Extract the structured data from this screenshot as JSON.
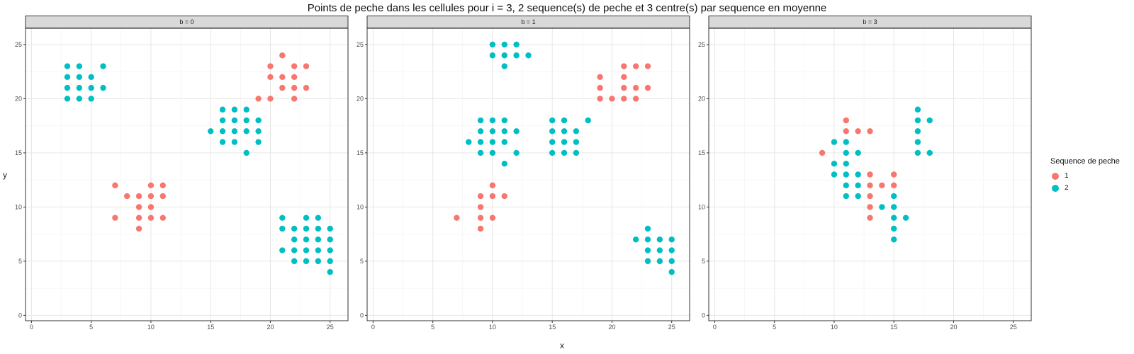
{
  "chart_data": {
    "type": "scatter",
    "title": "Points de peche dans les cellules pour i = 3, 2 sequence(s) de peche et 3 centre(s) par sequence en moyenne",
    "xlabel": "x",
    "ylabel": "y",
    "xlim": [
      -0.5,
      26.5
    ],
    "ylim": [
      -0.5,
      26.5
    ],
    "x_ticks": [
      0,
      5,
      10,
      15,
      20,
      25
    ],
    "y_ticks": [
      0,
      5,
      10,
      15,
      20,
      25
    ],
    "grid": true,
    "legend": {
      "title": "Sequence de peche",
      "position": "right",
      "entries": [
        {
          "label": "1",
          "color": "#F8766D"
        },
        {
          "label": "2",
          "color": "#00BFC4"
        }
      ]
    },
    "panels": [
      {
        "strip": "b = 0",
        "series": [
          {
            "name": "1",
            "color": "#F8766D",
            "points": [
              [
                7,
                12
              ],
              [
                7,
                9
              ],
              [
                8,
                11
              ],
              [
                9,
                11
              ],
              [
                9,
                10
              ],
              [
                9,
                9
              ],
              [
                9,
                8
              ],
              [
                10,
                12
              ],
              [
                10,
                11
              ],
              [
                10,
                10
              ],
              [
                10,
                9
              ],
              [
                11,
                12
              ],
              [
                11,
                11
              ],
              [
                11,
                9
              ],
              [
                19,
                20
              ],
              [
                20,
                23
              ],
              [
                20,
                22
              ],
              [
                20,
                20
              ],
              [
                21,
                24
              ],
              [
                21,
                22
              ],
              [
                21,
                21
              ],
              [
                22,
                23
              ],
              [
                22,
                22
              ],
              [
                22,
                21
              ],
              [
                22,
                20
              ],
              [
                23,
                23
              ],
              [
                23,
                21
              ]
            ]
          },
          {
            "name": "2",
            "color": "#00BFC4",
            "points": [
              [
                3,
                23
              ],
              [
                3,
                22
              ],
              [
                3,
                21
              ],
              [
                3,
                20
              ],
              [
                4,
                23
              ],
              [
                4,
                22
              ],
              [
                4,
                21
              ],
              [
                4,
                20
              ],
              [
                5,
                22
              ],
              [
                5,
                21
              ],
              [
                5,
                20
              ],
              [
                6,
                23
              ],
              [
                6,
                21
              ],
              [
                15,
                17
              ],
              [
                16,
                19
              ],
              [
                16,
                18
              ],
              [
                16,
                17
              ],
              [
                16,
                16
              ],
              [
                17,
                19
              ],
              [
                17,
                18
              ],
              [
                17,
                17
              ],
              [
                17,
                16
              ],
              [
                18,
                19
              ],
              [
                18,
                18
              ],
              [
                18,
                17
              ],
              [
                18,
                15
              ],
              [
                19,
                18
              ],
              [
                19,
                17
              ],
              [
                19,
                16
              ],
              [
                21,
                9
              ],
              [
                21,
                8
              ],
              [
                21,
                6
              ],
              [
                22,
                8
              ],
              [
                22,
                7
              ],
              [
                22,
                6
              ],
              [
                22,
                5
              ],
              [
                23,
                9
              ],
              [
                23,
                8
              ],
              [
                23,
                7
              ],
              [
                23,
                6
              ],
              [
                23,
                5
              ],
              [
                24,
                9
              ],
              [
                24,
                8
              ],
              [
                24,
                7
              ],
              [
                24,
                6
              ],
              [
                24,
                5
              ],
              [
                25,
                8
              ],
              [
                25,
                7
              ],
              [
                25,
                6
              ],
              [
                25,
                5
              ],
              [
                25,
                4
              ]
            ]
          }
        ]
      },
      {
        "strip": "b = 1",
        "series": [
          {
            "name": "1",
            "color": "#F8766D",
            "points": [
              [
                7,
                9
              ],
              [
                9,
                11
              ],
              [
                9,
                10
              ],
              [
                9,
                9
              ],
              [
                9,
                8
              ],
              [
                10,
                12
              ],
              [
                10,
                11
              ],
              [
                10,
                9
              ],
              [
                11,
                11
              ],
              [
                19,
                22
              ],
              [
                19,
                21
              ],
              [
                19,
                20
              ],
              [
                20,
                20
              ],
              [
                21,
                23
              ],
              [
                21,
                22
              ],
              [
                21,
                21
              ],
              [
                21,
                20
              ],
              [
                22,
                23
              ],
              [
                22,
                21
              ],
              [
                22,
                20
              ],
              [
                23,
                23
              ],
              [
                23,
                21
              ]
            ]
          },
          {
            "name": "2",
            "color": "#00BFC4",
            "points": [
              [
                8,
                16
              ],
              [
                9,
                18
              ],
              [
                9,
                17
              ],
              [
                9,
                16
              ],
              [
                9,
                15
              ],
              [
                10,
                25
              ],
              [
                10,
                24
              ],
              [
                10,
                18
              ],
              [
                10,
                17
              ],
              [
                10,
                16
              ],
              [
                10,
                15
              ],
              [
                11,
                25
              ],
              [
                11,
                24
              ],
              [
                11,
                23
              ],
              [
                11,
                18
              ],
              [
                11,
                17
              ],
              [
                11,
                16
              ],
              [
                11,
                14
              ],
              [
                12,
                25
              ],
              [
                12,
                24
              ],
              [
                12,
                17
              ],
              [
                12,
                15
              ],
              [
                13,
                24
              ],
              [
                15,
                18
              ],
              [
                15,
                17
              ],
              [
                15,
                16
              ],
              [
                15,
                15
              ],
              [
                16,
                18
              ],
              [
                16,
                17
              ],
              [
                16,
                16
              ],
              [
                16,
                15
              ],
              [
                17,
                17
              ],
              [
                17,
                16
              ],
              [
                17,
                15
              ],
              [
                18,
                18
              ],
              [
                22,
                7
              ],
              [
                23,
                8
              ],
              [
                23,
                7
              ],
              [
                23,
                6
              ],
              [
                23,
                5
              ],
              [
                24,
                7
              ],
              [
                24,
                6
              ],
              [
                24,
                5
              ],
              [
                25,
                7
              ],
              [
                25,
                6
              ],
              [
                25,
                5
              ],
              [
                25,
                4
              ]
            ]
          }
        ]
      },
      {
        "strip": "b = 3",
        "series": [
          {
            "name": "1",
            "color": "#F8766D",
            "points": [
              [
                9,
                15
              ],
              [
                11,
                18
              ],
              [
                11,
                17
              ],
              [
                12,
                17
              ],
              [
                13,
                17
              ],
              [
                13,
                13
              ],
              [
                13,
                12
              ],
              [
                13,
                11
              ],
              [
                13,
                10
              ],
              [
                13,
                9
              ],
              [
                14,
                12
              ],
              [
                15,
                13
              ],
              [
                15,
                12
              ]
            ]
          },
          {
            "name": "2",
            "color": "#00BFC4",
            "points": [
              [
                10,
                16
              ],
              [
                10,
                14
              ],
              [
                10,
                13
              ],
              [
                11,
                16
              ],
              [
                11,
                15
              ],
              [
                11,
                14
              ],
              [
                11,
                13
              ],
              [
                11,
                12
              ],
              [
                11,
                11
              ],
              [
                12,
                15
              ],
              [
                12,
                13
              ],
              [
                12,
                12
              ],
              [
                12,
                11
              ],
              [
                14,
                10
              ],
              [
                15,
                11
              ],
              [
                15,
                10
              ],
              [
                15,
                9
              ],
              [
                15,
                8
              ],
              [
                15,
                7
              ],
              [
                16,
                9
              ],
              [
                17,
                19
              ],
              [
                17,
                18
              ],
              [
                17,
                17
              ],
              [
                17,
                16
              ],
              [
                17,
                15
              ],
              [
                18,
                18
              ],
              [
                18,
                15
              ]
            ]
          }
        ]
      }
    ]
  }
}
